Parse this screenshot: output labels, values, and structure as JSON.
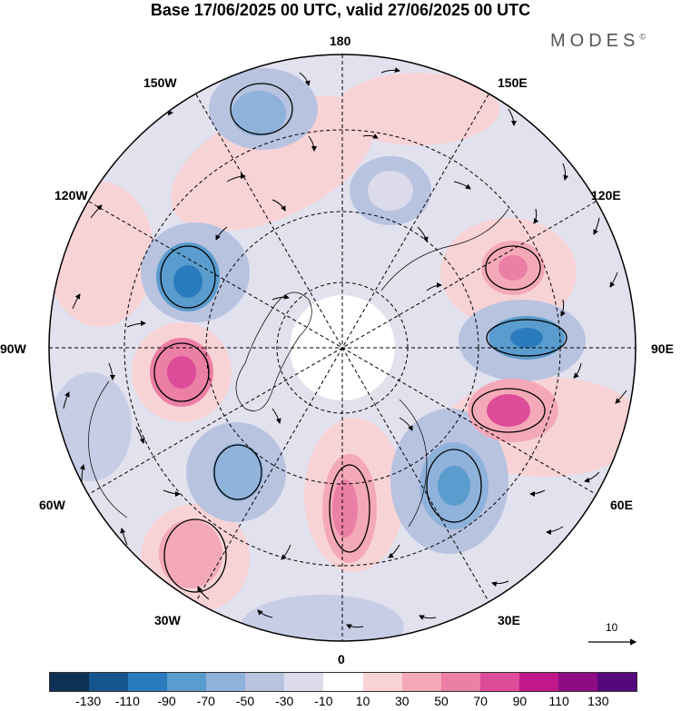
{
  "title": "Base 17/06/2025 00 UTC, valid 27/06/2025 00 UTC",
  "brand": "MODES",
  "brand_mark": "©",
  "longitude_labels": {
    "top": "180",
    "bottom": "0",
    "left": "90W",
    "right": "90E",
    "upper_left": "150W",
    "upper_right": "150E",
    "mid_upper_left": "120W",
    "mid_upper_right": "120E",
    "mid_lower_left": "60W",
    "mid_lower_right": "60E",
    "lower_left": "30W",
    "lower_right": "30E"
  },
  "reference_vector": "10",
  "colorbar": {
    "ticks": [
      "-130",
      "-110",
      "-90",
      "-70",
      "-50",
      "-30",
      "-10",
      "10",
      "30",
      "50",
      "70",
      "90",
      "110",
      "130"
    ],
    "colors": [
      "#0d3152",
      "#17558e",
      "#2a7bbd",
      "#5a9ccd",
      "#8fb2db",
      "#b8c3e0",
      "#dcdbec",
      "#ffffff",
      "#f8d3d6",
      "#f4a9b8",
      "#ec7fa5",
      "#dd4c98",
      "#c0188a",
      "#8e0c83",
      "#55077c"
    ]
  }
}
